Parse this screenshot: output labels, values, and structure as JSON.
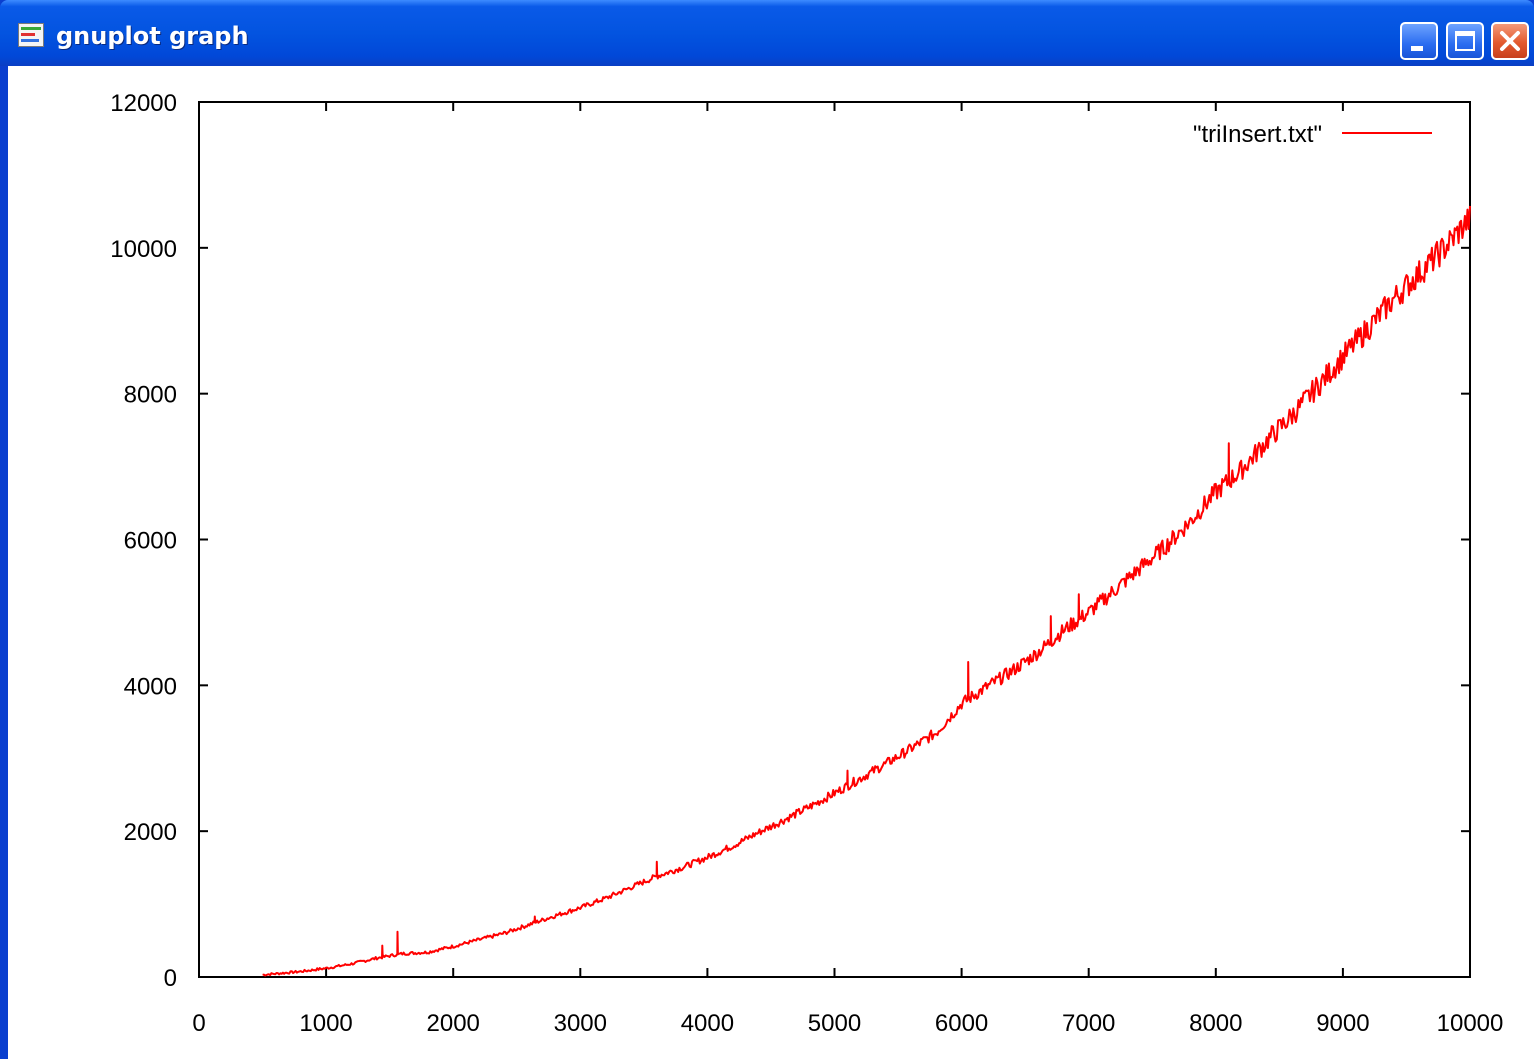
{
  "window": {
    "title": "gnuplot graph",
    "controls": [
      "minimize",
      "maximize",
      "close"
    ],
    "title_bar_color": "#0354e0",
    "close_button_color": "#e35a2e"
  },
  "chart_data": {
    "type": "line",
    "title": "",
    "xlabel": "",
    "ylabel": "",
    "xlim": [
      0,
      10000
    ],
    "ylim": [
      0,
      12000
    ],
    "x_ticks": [
      0,
      1000,
      2000,
      3000,
      4000,
      5000,
      6000,
      7000,
      8000,
      9000,
      10000
    ],
    "y_ticks": [
      0,
      2000,
      4000,
      6000,
      8000,
      10000,
      12000
    ],
    "grid": false,
    "legend": {
      "position": "top-right"
    },
    "series": [
      {
        "name": "\"triInsert.txt\"",
        "color": "#ff0000",
        "x": [
          500,
          800,
          1000,
          1200,
          1400,
          1600,
          1800,
          2000,
          2200,
          2400,
          2600,
          2800,
          3000,
          3200,
          3400,
          3600,
          3800,
          4000,
          4200,
          4400,
          4600,
          4800,
          5000,
          5200,
          5400,
          5600,
          5800,
          6000,
          6200,
          6400,
          6600,
          6800,
          7000,
          7200,
          7400,
          7600,
          7800,
          8000,
          8200,
          8400,
          8600,
          8800,
          9000,
          9200,
          9400,
          9600,
          9800,
          10000
        ],
        "y": [
          30,
          75,
          120,
          180,
          260,
          320,
          340,
          420,
          510,
          600,
          720,
          840,
          950,
          1080,
          1230,
          1380,
          1500,
          1640,
          1800,
          1980,
          2150,
          2330,
          2520,
          2720,
          2920,
          3130,
          3350,
          3750,
          3980,
          4200,
          4450,
          4750,
          5000,
          5300,
          5600,
          5900,
          6250,
          6650,
          6950,
          7350,
          7700,
          8100,
          8500,
          8900,
          9300,
          9650,
          10000,
          10400
        ]
      }
    ],
    "spikes": [
      {
        "x": 480,
        "y": 130
      },
      {
        "x": 1440,
        "y": 430
      },
      {
        "x": 1560,
        "y": 620
      },
      {
        "x": 2640,
        "y": 830
      },
      {
        "x": 3600,
        "y": 1580
      },
      {
        "x": 5100,
        "y": 2830
      },
      {
        "x": 6050,
        "y": 4320
      },
      {
        "x": 6700,
        "y": 4950
      },
      {
        "x": 6920,
        "y": 5250
      },
      {
        "x": 8100,
        "y": 7320
      }
    ]
  }
}
